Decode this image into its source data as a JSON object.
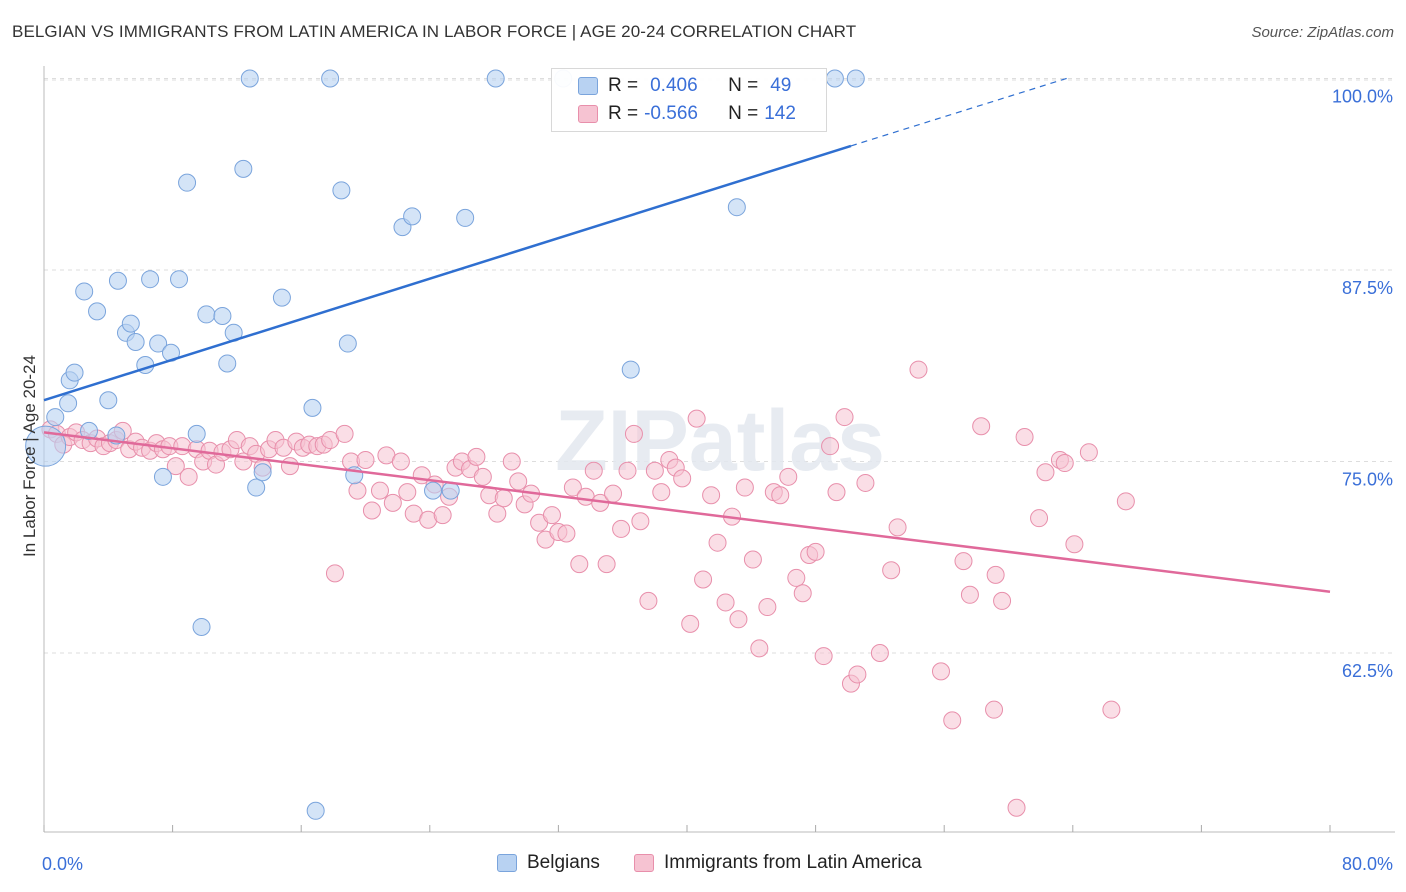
{
  "title": "BELGIAN VS IMMIGRANTS FROM LATIN AMERICA IN LABOR FORCE | AGE 20-24 CORRELATION CHART",
  "source": "Source: ZipAtlas.com",
  "watermark": "ZIPatlas",
  "legend": {
    "r_label": "R =",
    "n_label": "N =",
    "belgians": {
      "r": "0.406",
      "n": "49"
    },
    "latin": {
      "r": "-0.566",
      "n": "142"
    }
  },
  "colors": {
    "blue_fill": "#b8d2f2",
    "blue_edge": "#7aa4dc",
    "blue_line": "#2f6fd0",
    "pink_fill": "#f6c3d2",
    "pink_edge": "#e88fab",
    "pink_line": "#e0699a",
    "tick_text": "#3a6fd8",
    "grid": "#dddddd"
  },
  "chart_data": {
    "type": "scatter",
    "title": "BELGIAN VS IMMIGRANTS FROM LATIN AMERICA IN LABOR FORCE | AGE 20-24 CORRELATION CHART",
    "xlabel": "",
    "ylabel": "In Labor Force | Age 20-24",
    "xlim": [
      0,
      80
    ],
    "ylim": [
      50,
      101.5
    ],
    "x_tick_labels": [
      "0.0%",
      "80.0%"
    ],
    "y_ticks": [
      62.5,
      75.0,
      87.5,
      100.0
    ],
    "y_tick_labels": [
      "62.5%",
      "75.0%",
      "87.5%",
      "100.0%"
    ],
    "grid": true,
    "legend_position": "top-center",
    "series": [
      {
        "name": "Belgians",
        "r": 0.406,
        "n": 49,
        "trend": {
          "x0": 0,
          "y0": 79.0,
          "x1": 50.2,
          "y1": 95.6,
          "dash_to_x": 63.9,
          "dash_to_y": 100.1
        },
        "points": [
          [
            0.1,
            76.0
          ],
          [
            0.7,
            77.9
          ],
          [
            1.6,
            80.3
          ],
          [
            1.5,
            78.8
          ],
          [
            1.9,
            80.8
          ],
          [
            2.5,
            86.1
          ],
          [
            2.8,
            77.0
          ],
          [
            3.3,
            84.8
          ],
          [
            4.0,
            79.0
          ],
          [
            4.5,
            76.7
          ],
          [
            4.6,
            86.8
          ],
          [
            5.1,
            83.4
          ],
          [
            5.4,
            84.0
          ],
          [
            5.7,
            82.8
          ],
          [
            6.3,
            81.3
          ],
          [
            6.6,
            86.9
          ],
          [
            7.1,
            82.7
          ],
          [
            7.4,
            74.0
          ],
          [
            7.9,
            82.1
          ],
          [
            8.4,
            86.9
          ],
          [
            8.9,
            93.2
          ],
          [
            9.5,
            76.8
          ],
          [
            9.8,
            64.2
          ],
          [
            10.1,
            84.6
          ],
          [
            11.1,
            84.5
          ],
          [
            11.4,
            81.4
          ],
          [
            11.8,
            83.4
          ],
          [
            12.4,
            94.1
          ],
          [
            12.8,
            100.0
          ],
          [
            13.2,
            73.3
          ],
          [
            13.6,
            74.3
          ],
          [
            14.8,
            85.7
          ],
          [
            16.7,
            78.5
          ],
          [
            16.9,
            52.2
          ],
          [
            17.8,
            100.0
          ],
          [
            18.5,
            92.7
          ],
          [
            18.9,
            82.7
          ],
          [
            19.3,
            74.1
          ],
          [
            22.3,
            90.3
          ],
          [
            22.9,
            91.0
          ],
          [
            24.2,
            73.1
          ],
          [
            25.3,
            73.1
          ],
          [
            26.2,
            90.9
          ],
          [
            28.1,
            100.0
          ],
          [
            32.3,
            100.0
          ],
          [
            36.5,
            81.0
          ],
          [
            43.1,
            91.6
          ],
          [
            49.2,
            100.0
          ],
          [
            50.5,
            100.0
          ]
        ]
      },
      {
        "name": "Immigrants from Latin America",
        "r": -0.566,
        "n": 142,
        "trend": {
          "x0": 0,
          "y0": 76.9,
          "x1": 80,
          "y1": 66.5
        },
        "points": [
          [
            0.4,
            77.1
          ],
          [
            0.8,
            76.8
          ],
          [
            1.2,
            76.1
          ],
          [
            1.6,
            76.6
          ],
          [
            2.0,
            76.9
          ],
          [
            2.4,
            76.4
          ],
          [
            2.9,
            76.2
          ],
          [
            3.3,
            76.5
          ],
          [
            3.7,
            76.0
          ],
          [
            4.1,
            76.2
          ],
          [
            4.5,
            76.4
          ],
          [
            4.9,
            77.0
          ],
          [
            5.3,
            75.8
          ],
          [
            5.7,
            76.3
          ],
          [
            6.1,
            75.9
          ],
          [
            6.6,
            75.7
          ],
          [
            7.0,
            76.2
          ],
          [
            7.4,
            75.8
          ],
          [
            7.8,
            76.0
          ],
          [
            8.2,
            74.7
          ],
          [
            8.6,
            76.0
          ],
          [
            9.0,
            74.0
          ],
          [
            9.5,
            75.8
          ],
          [
            9.9,
            75.0
          ],
          [
            10.3,
            75.7
          ],
          [
            10.7,
            74.8
          ],
          [
            11.1,
            75.6
          ],
          [
            11.6,
            75.8
          ],
          [
            12.0,
            76.4
          ],
          [
            12.4,
            75.0
          ],
          [
            12.8,
            76.0
          ],
          [
            13.2,
            75.5
          ],
          [
            13.6,
            74.6
          ],
          [
            14.0,
            75.8
          ],
          [
            14.4,
            76.4
          ],
          [
            14.9,
            75.9
          ],
          [
            15.3,
            74.7
          ],
          [
            15.7,
            76.3
          ],
          [
            16.1,
            75.9
          ],
          [
            16.5,
            76.1
          ],
          [
            17.0,
            76.0
          ],
          [
            17.4,
            76.1
          ],
          [
            17.8,
            76.4
          ],
          [
            18.1,
            67.7
          ],
          [
            18.7,
            76.8
          ],
          [
            19.1,
            75.0
          ],
          [
            19.5,
            73.1
          ],
          [
            20.0,
            75.1
          ],
          [
            20.4,
            71.8
          ],
          [
            20.9,
            73.1
          ],
          [
            21.3,
            75.4
          ],
          [
            21.7,
            72.3
          ],
          [
            22.2,
            75.0
          ],
          [
            22.6,
            73.0
          ],
          [
            23.0,
            71.6
          ],
          [
            23.5,
            74.1
          ],
          [
            23.9,
            71.2
          ],
          [
            24.3,
            73.5
          ],
          [
            24.8,
            71.5
          ],
          [
            25.2,
            72.7
          ],
          [
            25.6,
            74.6
          ],
          [
            26.0,
            75.0
          ],
          [
            26.5,
            74.5
          ],
          [
            26.9,
            75.3
          ],
          [
            27.3,
            74.0
          ],
          [
            27.7,
            72.8
          ],
          [
            28.2,
            71.6
          ],
          [
            28.6,
            72.6
          ],
          [
            29.1,
            75.0
          ],
          [
            29.5,
            73.7
          ],
          [
            29.9,
            72.2
          ],
          [
            30.3,
            72.9
          ],
          [
            30.8,
            71.0
          ],
          [
            31.2,
            69.9
          ],
          [
            31.6,
            71.5
          ],
          [
            32.0,
            70.4
          ],
          [
            32.5,
            70.3
          ],
          [
            32.9,
            73.3
          ],
          [
            33.3,
            68.3
          ],
          [
            33.7,
            72.7
          ],
          [
            34.2,
            74.4
          ],
          [
            34.6,
            72.3
          ],
          [
            35.0,
            68.3
          ],
          [
            35.4,
            72.9
          ],
          [
            35.9,
            70.6
          ],
          [
            36.3,
            74.4
          ],
          [
            36.7,
            76.8
          ],
          [
            37.1,
            71.1
          ],
          [
            37.6,
            65.9
          ],
          [
            38.0,
            74.4
          ],
          [
            38.4,
            73.0
          ],
          [
            38.9,
            75.1
          ],
          [
            39.3,
            74.6
          ],
          [
            39.7,
            73.9
          ],
          [
            40.2,
            64.4
          ],
          [
            40.6,
            77.8
          ],
          [
            41.0,
            67.3
          ],
          [
            41.5,
            72.8
          ],
          [
            41.9,
            69.7
          ],
          [
            42.4,
            65.8
          ],
          [
            42.8,
            71.4
          ],
          [
            43.2,
            64.7
          ],
          [
            43.6,
            73.3
          ],
          [
            44.1,
            68.6
          ],
          [
            44.5,
            62.8
          ],
          [
            45.0,
            65.5
          ],
          [
            45.4,
            73.0
          ],
          [
            45.8,
            72.8
          ],
          [
            46.3,
            74.0
          ],
          [
            46.8,
            67.4
          ],
          [
            47.2,
            66.4
          ],
          [
            47.6,
            68.9
          ],
          [
            48.0,
            69.1
          ],
          [
            48.5,
            62.3
          ],
          [
            48.9,
            76.0
          ],
          [
            49.3,
            73.0
          ],
          [
            49.8,
            77.9
          ],
          [
            50.2,
            60.5
          ],
          [
            50.6,
            61.1
          ],
          [
            51.1,
            73.6
          ],
          [
            52.0,
            62.5
          ],
          [
            52.7,
            67.9
          ],
          [
            53.1,
            70.7
          ],
          [
            54.4,
            81.0
          ],
          [
            55.8,
            61.3
          ],
          [
            56.5,
            58.1
          ],
          [
            57.2,
            68.5
          ],
          [
            57.6,
            66.3
          ],
          [
            58.3,
            77.3
          ],
          [
            59.1,
            58.8
          ],
          [
            59.6,
            65.9
          ],
          [
            60.5,
            52.4
          ],
          [
            61.0,
            76.6
          ],
          [
            61.9,
            71.3
          ],
          [
            62.3,
            74.3
          ],
          [
            63.2,
            75.1
          ],
          [
            64.1,
            69.6
          ],
          [
            65.0,
            75.6
          ],
          [
            66.4,
            58.8
          ],
          [
            67.3,
            72.4
          ],
          [
            63.5,
            74.9
          ],
          [
            59.2,
            67.6
          ]
        ]
      }
    ]
  },
  "bottom_legend": {
    "belgians": "Belgians",
    "latin": "Immigrants from Latin America"
  }
}
